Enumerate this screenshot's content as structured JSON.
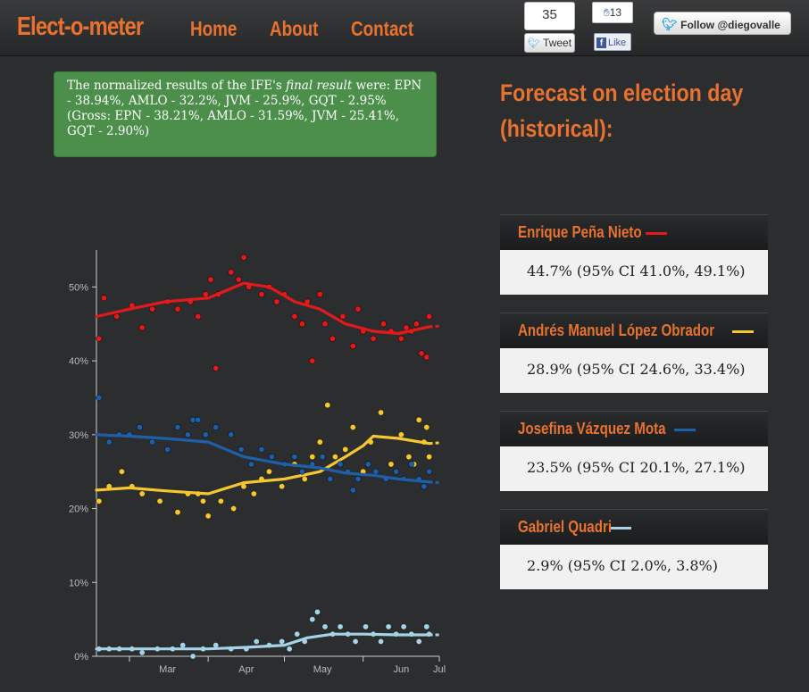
{
  "header": {
    "brand": "Elect-o-meter",
    "nav": [
      "Home",
      "About",
      "Contact"
    ],
    "tweet_count": "35",
    "tweet_label": "Tweet",
    "like_count": "13",
    "like_label": "Like",
    "follow_label": "Follow @diegovalle"
  },
  "alert": {
    "pre": "The normalized results of the IFE's ",
    "emph": "final result",
    "post": " were: EPN - 38.94%, AMLO - 32.2%, JVM - 25.9%, GQT - 2.95% (Gross: EPN - 38.21%, AMLO - 31.59%, JVM - 25.41%, GQT - 2.90%)"
  },
  "forecast": {
    "title": "Forecast on election day (historical):",
    "candidates": [
      {
        "name": "Enrique Peña Nieto",
        "color": "#e31a1c",
        "text": "44.7% (95% CI 41.0%, 49.1%)"
      },
      {
        "name": "Andrés Manuel López Obrador",
        "color": "#f6c830",
        "text": "28.9% (95% CI 24.6%, 33.4%)"
      },
      {
        "name": "Josefina Vázquez Mota",
        "color": "#1f5fa8",
        "text": "23.5% (95% CI 20.1%, 27.1%)"
      },
      {
        "name": "Gabriel Quadri",
        "color": "#a6d3e6",
        "text": "2.9% (95% CI 2.0%, 3.8%)"
      }
    ]
  },
  "chart_data": {
    "type": "scatter",
    "x_ticks": [
      "Mar",
      "Apr",
      "May",
      "Jun",
      "Jul"
    ],
    "y_ticks": [
      "0%",
      "10%",
      "20%",
      "30%",
      "40%",
      "50%"
    ],
    "ylim": [
      0,
      55
    ],
    "xlim": [
      "2012-02-17",
      "2012-07-01"
    ],
    "grid": false,
    "series": [
      {
        "color": "#e31a1c",
        "trend": [
          [
            "2012-02-17",
            46
          ],
          [
            "2012-03-01",
            47
          ],
          [
            "2012-03-15",
            48
          ],
          [
            "2012-04-01",
            48.5
          ],
          [
            "2012-04-15",
            50.5
          ],
          [
            "2012-04-25",
            50
          ],
          [
            "2012-05-05",
            48
          ],
          [
            "2012-05-15",
            47
          ],
          [
            "2012-05-25",
            45
          ],
          [
            "2012-06-05",
            44
          ],
          [
            "2012-06-15",
            43.7
          ],
          [
            "2012-06-27",
            44.6
          ]
        ],
        "projection": [
          [
            "2012-06-27",
            44.6
          ],
          [
            "2012-07-01",
            44.7
          ]
        ],
        "points": [
          [
            "2012-02-18",
            43
          ],
          [
            "2012-02-20",
            48.5
          ],
          [
            "2012-02-25",
            46
          ],
          [
            "2012-03-02",
            47.5
          ],
          [
            "2012-03-06",
            44.5
          ],
          [
            "2012-03-10",
            47
          ],
          [
            "2012-03-16",
            48
          ],
          [
            "2012-03-20",
            47
          ],
          [
            "2012-03-25",
            48
          ],
          [
            "2012-03-28",
            46
          ],
          [
            "2012-03-31",
            49
          ],
          [
            "2012-04-02",
            51
          ],
          [
            "2012-04-05",
            49
          ],
          [
            "2012-04-10",
            52
          ],
          [
            "2012-04-13",
            51
          ],
          [
            "2012-04-15",
            54
          ],
          [
            "2012-04-17",
            50
          ],
          [
            "2012-04-22",
            49
          ],
          [
            "2012-04-25",
            50
          ],
          [
            "2012-04-28",
            48
          ],
          [
            "2012-05-01",
            49
          ],
          [
            "2012-05-05",
            46
          ],
          [
            "2012-05-08",
            45
          ],
          [
            "2012-05-10",
            48
          ],
          [
            "2012-05-12",
            40
          ],
          [
            "2012-05-15",
            49
          ],
          [
            "2012-05-17",
            45
          ],
          [
            "2012-05-20",
            43
          ],
          [
            "2012-05-24",
            46
          ],
          [
            "2012-05-28",
            42
          ],
          [
            "2012-06-01",
            44
          ],
          [
            "2012-06-05",
            43
          ],
          [
            "2012-06-09",
            45
          ],
          [
            "2012-06-12",
            44
          ],
          [
            "2012-06-16",
            43
          ],
          [
            "2012-06-20",
            44
          ],
          [
            "2012-06-22",
            45
          ],
          [
            "2012-06-24",
            41
          ],
          [
            "2012-06-26",
            40.5
          ],
          [
            "2012-06-27",
            46
          ],
          [
            "2012-04-04",
            39
          ],
          [
            "2012-05-30",
            47
          ],
          [
            "2012-06-18",
            44.5
          ]
        ]
      },
      {
        "color": "#f6c830",
        "trend": [
          [
            "2012-02-17",
            22.5
          ],
          [
            "2012-03-01",
            22.8
          ],
          [
            "2012-03-15",
            22.4
          ],
          [
            "2012-04-01",
            22
          ],
          [
            "2012-04-15",
            23.5
          ],
          [
            "2012-05-01",
            24
          ],
          [
            "2012-05-15",
            25
          ],
          [
            "2012-05-25",
            27
          ],
          [
            "2012-06-01",
            28.5
          ],
          [
            "2012-06-05",
            29.8
          ],
          [
            "2012-06-15",
            29.5
          ],
          [
            "2012-06-27",
            28.8
          ]
        ],
        "projection": [
          [
            "2012-06-27",
            28.8
          ],
          [
            "2012-07-01",
            28.9
          ]
        ],
        "points": [
          [
            "2012-02-18",
            21
          ],
          [
            "2012-02-22",
            23
          ],
          [
            "2012-02-27",
            25
          ],
          [
            "2012-03-02",
            23
          ],
          [
            "2012-03-06",
            22
          ],
          [
            "2012-03-13",
            21
          ],
          [
            "2012-03-20",
            19.5
          ],
          [
            "2012-03-24",
            22
          ],
          [
            "2012-03-28",
            22
          ],
          [
            "2012-04-01",
            19
          ],
          [
            "2012-04-06",
            21
          ],
          [
            "2012-04-11",
            20
          ],
          [
            "2012-04-15",
            23
          ],
          [
            "2012-04-19",
            22
          ],
          [
            "2012-04-25",
            25
          ],
          [
            "2012-04-30",
            23
          ],
          [
            "2012-05-05",
            26
          ],
          [
            "2012-05-09",
            24
          ],
          [
            "2012-05-12",
            27
          ],
          [
            "2012-05-15",
            29
          ],
          [
            "2012-05-18",
            34
          ],
          [
            "2012-05-21",
            27
          ],
          [
            "2012-05-25",
            28
          ],
          [
            "2012-05-28",
            31
          ],
          [
            "2012-06-01",
            25
          ],
          [
            "2012-06-04",
            29
          ],
          [
            "2012-06-08",
            33
          ],
          [
            "2012-06-12",
            26
          ],
          [
            "2012-06-16",
            30
          ],
          [
            "2012-06-19",
            27
          ],
          [
            "2012-06-21",
            26
          ],
          [
            "2012-06-23",
            32
          ],
          [
            "2012-06-25",
            29
          ],
          [
            "2012-06-26",
            31
          ],
          [
            "2012-06-27",
            27
          ],
          [
            "2012-03-30",
            21
          ],
          [
            "2012-04-22",
            24
          ]
        ]
      },
      {
        "color": "#1f5fa8",
        "trend": [
          [
            "2012-02-17",
            30
          ],
          [
            "2012-03-01",
            29.8
          ],
          [
            "2012-03-15",
            29.5
          ],
          [
            "2012-04-01",
            29
          ],
          [
            "2012-04-15",
            27
          ],
          [
            "2012-05-01",
            26
          ],
          [
            "2012-05-15",
            25.5
          ],
          [
            "2012-05-25",
            24.8
          ],
          [
            "2012-06-05",
            24.5
          ],
          [
            "2012-06-15",
            24
          ],
          [
            "2012-06-27",
            23.6
          ]
        ],
        "projection": [
          [
            "2012-06-27",
            23.6
          ],
          [
            "2012-07-01",
            23.5
          ]
        ],
        "points": [
          [
            "2012-02-18",
            35
          ],
          [
            "2012-02-22",
            29
          ],
          [
            "2012-02-26",
            30
          ],
          [
            "2012-03-01",
            30
          ],
          [
            "2012-03-05",
            31
          ],
          [
            "2012-03-10",
            29
          ],
          [
            "2012-03-16",
            28
          ],
          [
            "2012-03-20",
            31
          ],
          [
            "2012-03-24",
            30
          ],
          [
            "2012-03-26",
            32
          ],
          [
            "2012-03-28",
            32
          ],
          [
            "2012-03-31",
            30
          ],
          [
            "2012-04-04",
            31
          ],
          [
            "2012-04-10",
            30
          ],
          [
            "2012-04-14",
            28
          ],
          [
            "2012-04-18",
            26
          ],
          [
            "2012-04-22",
            28
          ],
          [
            "2012-04-26",
            27
          ],
          [
            "2012-05-01",
            26
          ],
          [
            "2012-05-05",
            27
          ],
          [
            "2012-05-08",
            25
          ],
          [
            "2012-05-12",
            26
          ],
          [
            "2012-05-16",
            27
          ],
          [
            "2012-05-19",
            24
          ],
          [
            "2012-05-23",
            26
          ],
          [
            "2012-05-26",
            25
          ],
          [
            "2012-05-30",
            24
          ],
          [
            "2012-06-03",
            26
          ],
          [
            "2012-06-06",
            25
          ],
          [
            "2012-06-10",
            24
          ],
          [
            "2012-06-14",
            25
          ],
          [
            "2012-06-17",
            24
          ],
          [
            "2012-06-20",
            26
          ],
          [
            "2012-06-23",
            24
          ],
          [
            "2012-06-25",
            23
          ],
          [
            "2012-06-27",
            25
          ],
          [
            "2012-05-28",
            22.5
          ]
        ]
      },
      {
        "color": "#a6d3e6",
        "trend": [
          [
            "2012-02-17",
            1
          ],
          [
            "2012-03-01",
            1
          ],
          [
            "2012-03-15",
            1
          ],
          [
            "2012-04-01",
            1
          ],
          [
            "2012-04-15",
            1.2
          ],
          [
            "2012-05-01",
            1.5
          ],
          [
            "2012-05-10",
            2.5
          ],
          [
            "2012-05-20",
            3
          ],
          [
            "2012-06-01",
            3
          ],
          [
            "2012-06-15",
            2.9
          ],
          [
            "2012-06-27",
            2.9
          ]
        ],
        "projection": [
          [
            "2012-06-27",
            2.9
          ],
          [
            "2012-07-01",
            2.9
          ]
        ],
        "points": [
          [
            "2012-02-18",
            1
          ],
          [
            "2012-02-22",
            1
          ],
          [
            "2012-02-26",
            1
          ],
          [
            "2012-03-02",
            1
          ],
          [
            "2012-03-06",
            0.5
          ],
          [
            "2012-03-12",
            1
          ],
          [
            "2012-03-18",
            1
          ],
          [
            "2012-03-22",
            1.5
          ],
          [
            "2012-03-26",
            0
          ],
          [
            "2012-03-30",
            1
          ],
          [
            "2012-04-04",
            1.5
          ],
          [
            "2012-04-10",
            1
          ],
          [
            "2012-04-16",
            1
          ],
          [
            "2012-04-20",
            2
          ],
          [
            "2012-04-25",
            1.5
          ],
          [
            "2012-04-30",
            2
          ],
          [
            "2012-05-03",
            1
          ],
          [
            "2012-05-06",
            3
          ],
          [
            "2012-05-09",
            2
          ],
          [
            "2012-05-12",
            5
          ],
          [
            "2012-05-14",
            6
          ],
          [
            "2012-05-17",
            4
          ],
          [
            "2012-05-20",
            3
          ],
          [
            "2012-05-23",
            4
          ],
          [
            "2012-05-26",
            3
          ],
          [
            "2012-05-29",
            2
          ],
          [
            "2012-06-02",
            4
          ],
          [
            "2012-06-05",
            3
          ],
          [
            "2012-06-08",
            2
          ],
          [
            "2012-06-11",
            4
          ],
          [
            "2012-06-14",
            3
          ],
          [
            "2012-06-17",
            4
          ],
          [
            "2012-06-20",
            3
          ],
          [
            "2012-06-23",
            2
          ],
          [
            "2012-06-26",
            4
          ],
          [
            "2012-06-27",
            3
          ]
        ]
      }
    ]
  }
}
